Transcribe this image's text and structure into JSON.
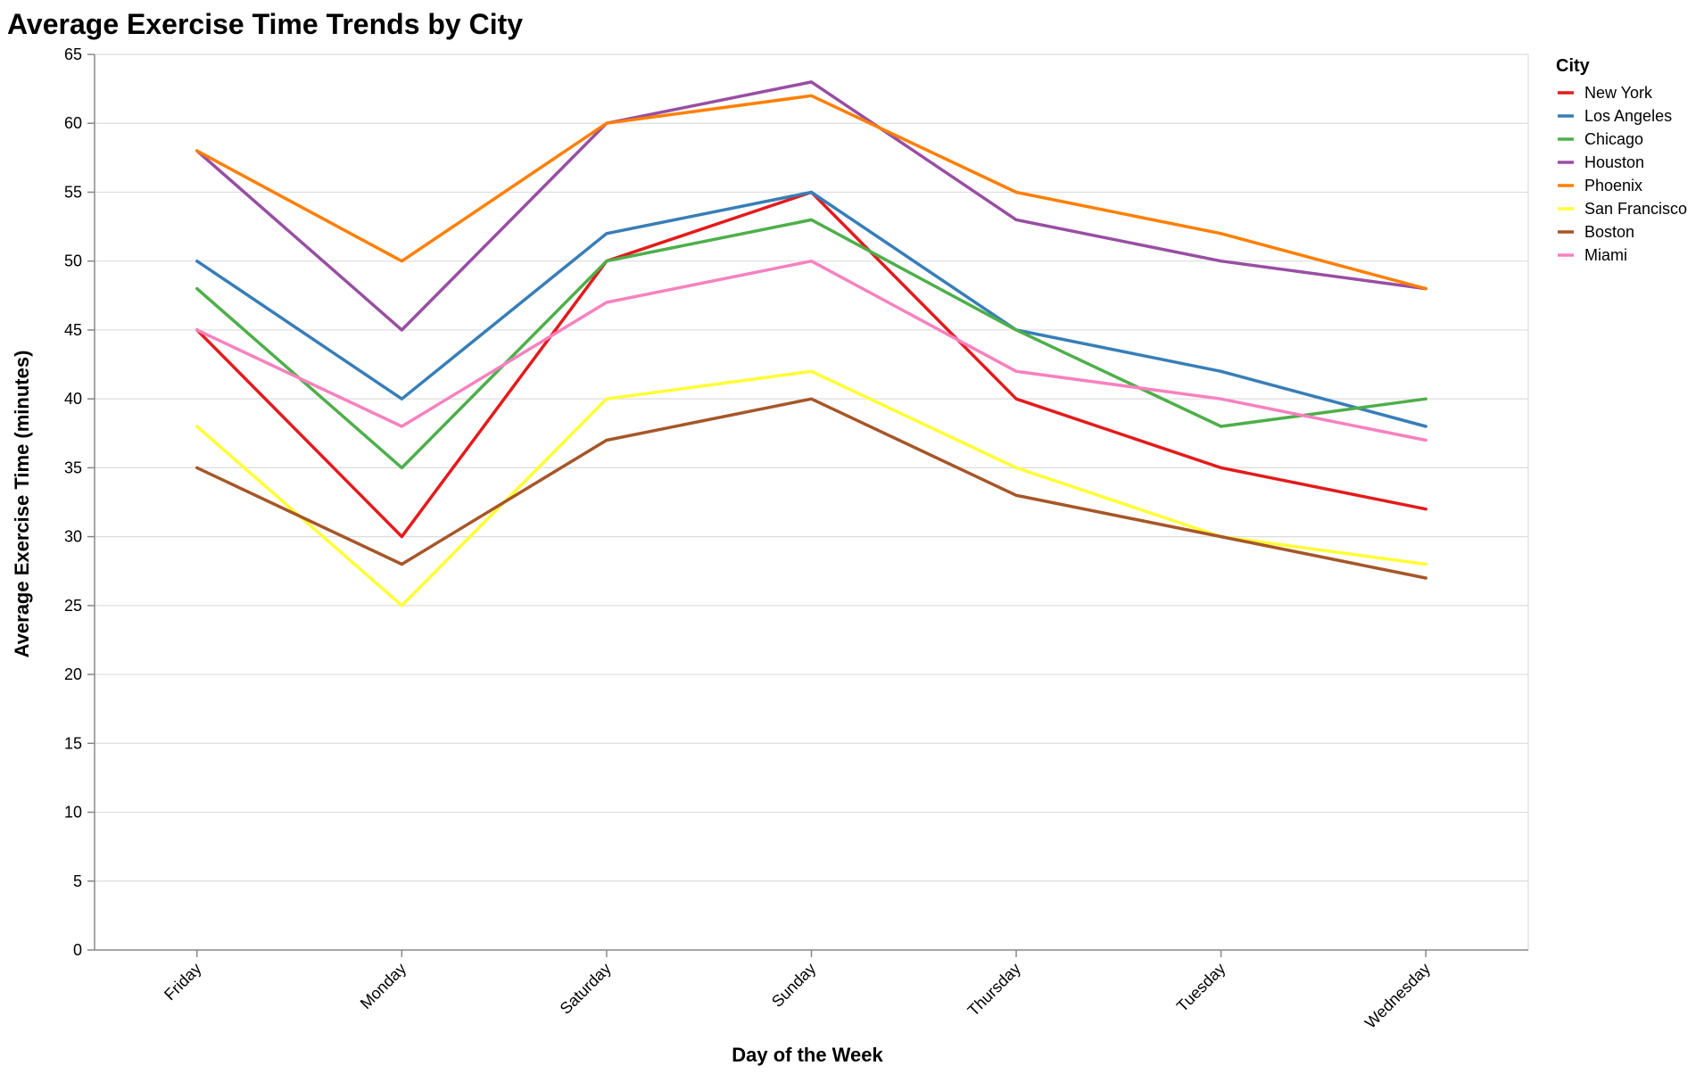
{
  "chart_data": {
    "type": "line",
    "title": "Average Exercise Time Trends by City",
    "xlabel": "Day of the Week",
    "ylabel": "Average Exercise Time (minutes)",
    "ylim": [
      0,
      65
    ],
    "yticks": [
      0,
      5,
      10,
      15,
      20,
      25,
      30,
      35,
      40,
      45,
      50,
      55,
      60,
      65
    ],
    "grid": true,
    "legend_title": "City",
    "legend_position": "right",
    "categories": [
      "Friday",
      "Monday",
      "Saturday",
      "Sunday",
      "Thursday",
      "Tuesday",
      "Wednesday"
    ],
    "series": [
      {
        "name": "New York",
        "color": "#e41a1c",
        "values": [
          45,
          30,
          50,
          55,
          40,
          35,
          32
        ]
      },
      {
        "name": "Los Angeles",
        "color": "#377eb8",
        "values": [
          50,
          40,
          52,
          55,
          45,
          42,
          38
        ]
      },
      {
        "name": "Chicago",
        "color": "#4daf4a",
        "values": [
          48,
          35,
          50,
          53,
          45,
          38,
          40
        ]
      },
      {
        "name": "Houston",
        "color": "#984ea3",
        "values": [
          58,
          45,
          60,
          63,
          53,
          50,
          48
        ]
      },
      {
        "name": "Phoenix",
        "color": "#ff7f00",
        "values": [
          58,
          50,
          60,
          62,
          55,
          52,
          48
        ]
      },
      {
        "name": "San Francisco",
        "color": "#ffff33",
        "values": [
          38,
          25,
          40,
          42,
          35,
          30,
          28
        ]
      },
      {
        "name": "Boston",
        "color": "#a65628",
        "values": [
          35,
          28,
          37,
          40,
          33,
          30,
          27
        ]
      },
      {
        "name": "Miami",
        "color": "#f781bf",
        "values": [
          45,
          38,
          47,
          50,
          42,
          40,
          37
        ]
      }
    ]
  }
}
